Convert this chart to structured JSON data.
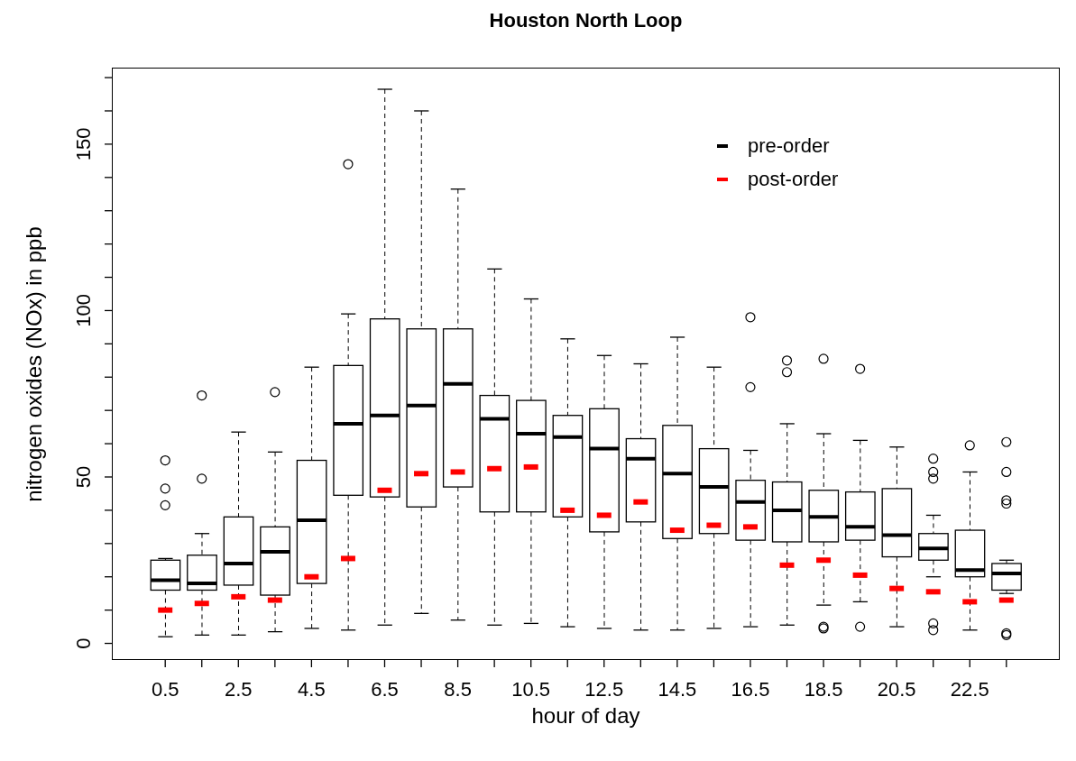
{
  "chart_data": {
    "type": "box",
    "title": "Houston North Loop",
    "xlabel": "hour of day",
    "ylabel": "nitrogen oxides (NOx) in ppb",
    "categories": [
      "0.5",
      null,
      "2.5",
      null,
      "4.5",
      null,
      "6.5",
      null,
      "8.5",
      null,
      "10.5",
      null,
      "12.5",
      null,
      "14.5",
      null,
      "16.5",
      null,
      "18.5",
      null,
      "20.5",
      null,
      "22.5",
      null
    ],
    "ylim": [
      -5,
      173
    ],
    "yticks": [
      0,
      {
        "value": 10,
        "label": null
      },
      {
        "value": 20,
        "label": null
      },
      {
        "value": 30,
        "label": null
      },
      {
        "value": 40,
        "label": null
      },
      50,
      {
        "value": 60,
        "label": null
      },
      {
        "value": 70,
        "label": null
      },
      {
        "value": 80,
        "label": null
      },
      {
        "value": 90,
        "label": null
      },
      100,
      {
        "value": 110,
        "label": null
      },
      {
        "value": 120,
        "label": null
      },
      {
        "value": 130,
        "label": null
      },
      {
        "value": 140,
        "label": null
      },
      150,
      {
        "value": 160,
        "label": null
      },
      {
        "value": 170,
        "label": null
      }
    ],
    "legend": "top right",
    "series": [
      {
        "name": "pre-order",
        "type": "box",
        "color": "#000000",
        "boxes": [
          {
            "low": 2,
            "q1": 16,
            "median": 19,
            "q3": 25,
            "high": 25.5,
            "outliers": [
              55,
              46.5,
              41.5
            ]
          },
          {
            "low": 2.5,
            "q1": 16,
            "median": 18,
            "q3": 26.5,
            "high": 33,
            "outliers": [
              74.5,
              49.5
            ]
          },
          {
            "low": 2.5,
            "q1": 17.5,
            "median": 24,
            "q3": 38,
            "high": 63.5
          },
          {
            "low": 3.5,
            "q1": 14.5,
            "median": 27.5,
            "q3": 35,
            "high": 57.5,
            "outliers": [
              75.5
            ]
          },
          {
            "low": 4.5,
            "q1": 18,
            "median": 37,
            "q3": 55,
            "high": 83
          },
          {
            "low": 4,
            "q1": 44.5,
            "median": 66,
            "q3": 83.5,
            "high": 99,
            "outliers": [
              144
            ]
          },
          {
            "low": 5.5,
            "q1": 44,
            "median": 68.5,
            "q3": 97.5,
            "high": 166.5
          },
          {
            "low": 9,
            "q1": 41,
            "median": 71.5,
            "q3": 94.5,
            "high": 160
          },
          {
            "low": 7,
            "q1": 47,
            "median": 78,
            "q3": 94.5,
            "high": 136.5
          },
          {
            "low": 5.5,
            "q1": 39.5,
            "median": 67.5,
            "q3": 74.5,
            "high": 112.5
          },
          {
            "low": 6,
            "q1": 39.5,
            "median": 63,
            "q3": 73,
            "high": 103.5
          },
          {
            "low": 5,
            "q1": 38,
            "median": 62,
            "q3": 68.5,
            "high": 91.5
          },
          {
            "low": 4.5,
            "q1": 33.5,
            "median": 58.5,
            "q3": 70.5,
            "high": 86.5
          },
          {
            "low": 4,
            "q1": 36.5,
            "median": 55.5,
            "q3": 61.5,
            "high": 84
          },
          {
            "low": 4,
            "q1": 31.5,
            "median": 51,
            "q3": 65.5,
            "high": 92
          },
          {
            "low": 4.5,
            "q1": 33,
            "median": 47,
            "q3": 58.5,
            "high": 83
          },
          {
            "low": 5,
            "q1": 31,
            "median": 42.5,
            "q3": 49,
            "high": 58,
            "outliers": [
              98,
              77
            ]
          },
          {
            "low": 5.5,
            "q1": 30.5,
            "median": 40,
            "q3": 48.5,
            "high": 66,
            "outliers": [
              85,
              81.5
            ]
          },
          {
            "low": 11.5,
            "q1": 30.5,
            "median": 38,
            "q3": 46,
            "high": 63,
            "outliers": [
              85.5,
              5,
              4.5
            ]
          },
          {
            "low": 12.5,
            "q1": 31,
            "median": 35,
            "q3": 45.5,
            "high": 61,
            "outliers": [
              82.5,
              5
            ]
          },
          {
            "low": 5,
            "q1": 26,
            "median": 32.5,
            "q3": 46.5,
            "high": 59
          },
          {
            "low": 20,
            "q1": 25,
            "median": 28.5,
            "q3": 33,
            "high": 38.5,
            "outliers": [
              55.5,
              51.5,
              49.5,
              6,
              4
            ]
          },
          {
            "low": 4,
            "q1": 20,
            "median": 22,
            "q3": 34,
            "high": 51.5,
            "outliers": [
              59.5
            ]
          },
          {
            "low": 15,
            "q1": 16,
            "median": 21,
            "q3": 24,
            "high": 25,
            "outliers": [
              60.5,
              51.5,
              43,
              42,
              3,
              2.5
            ]
          }
        ]
      },
      {
        "name": "post-order",
        "type": "scatter",
        "color": "#ff0000",
        "values": [
          10,
          12,
          14,
          13,
          20,
          25.5,
          46,
          51,
          51.5,
          52.5,
          53,
          40,
          38.5,
          42.5,
          34,
          35.5,
          35,
          23.5,
          25,
          20.5,
          16.5,
          15.5,
          12.5,
          13
        ]
      }
    ]
  }
}
